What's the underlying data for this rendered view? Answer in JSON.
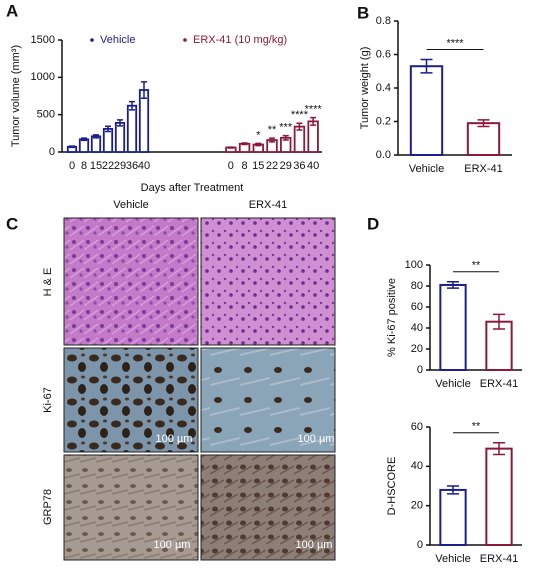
{
  "panel_labels": [
    "A",
    "B",
    "C",
    "D"
  ],
  "histology": {
    "columns": [
      "Vehicle",
      "ERX-41"
    ],
    "rows": [
      "H & E",
      "Ki-67",
      "GRP78"
    ],
    "scale_bar": "100 µm"
  },
  "chart_data": [
    {
      "type": "bar",
      "ylabel": "Tumor volume (mm³)",
      "xlabel": "Days after Treatment",
      "categories": [
        "0",
        "8",
        "15",
        "22",
        "29",
        "36",
        "40"
      ],
      "series": [
        {
          "name": "Vehicle",
          "color": "#1a1f8c",
          "values": [
            70,
            170,
            210,
            310,
            390,
            620,
            830
          ],
          "errors": [
            8,
            15,
            20,
            35,
            40,
            55,
            110
          ]
        },
        {
          "name": "ERX-41 (10 mg/kg)",
          "color": "#8b1a3a",
          "values": [
            60,
            110,
            100,
            160,
            190,
            340,
            410
          ],
          "errors": [
            6,
            10,
            15,
            25,
            30,
            45,
            50
          ],
          "annotations": [
            null,
            null,
            "*",
            "**",
            "***",
            "****",
            "****"
          ]
        }
      ],
      "ylim": [
        0,
        1500
      ],
      "yticks": [
        0,
        500,
        1000,
        1500
      ]
    },
    {
      "type": "bar",
      "ylabel": "Tumor weight (g)",
      "categories": [
        "Vehicle",
        "ERX-41"
      ],
      "values": [
        0.53,
        0.19
      ],
      "errors": [
        0.04,
        0.02
      ],
      "colors": [
        "#1a1f8c",
        "#8b1a3a"
      ],
      "ylim": [
        0,
        0.8
      ],
      "yticks": [
        {
          "value": 0,
          "label": "0.0"
        },
        0.2,
        0.4,
        0.6,
        0.8
      ],
      "significance": "****"
    },
    {
      "type": "bar",
      "ylabel": "% Ki-67 positive",
      "categories": [
        "Vehicle",
        "ERX-41"
      ],
      "values": [
        81,
        46
      ],
      "errors": [
        3,
        7
      ],
      "colors": [
        "#1a1f8c",
        "#8b1a3a"
      ],
      "ylim": [
        0,
        100
      ],
      "yticks": [
        0,
        20,
        40,
        60,
        80,
        100
      ],
      "significance": "**"
    },
    {
      "type": "bar",
      "ylabel": "D-HSCORE",
      "categories": [
        "Vehicle",
        "ERX-41"
      ],
      "values": [
        28,
        49
      ],
      "errors": [
        2,
        3
      ],
      "colors": [
        "#1a1f8c",
        "#8b1a3a"
      ],
      "ylim": [
        0,
        60
      ],
      "yticks": [
        0,
        20,
        40,
        60
      ],
      "significance": "**"
    }
  ]
}
